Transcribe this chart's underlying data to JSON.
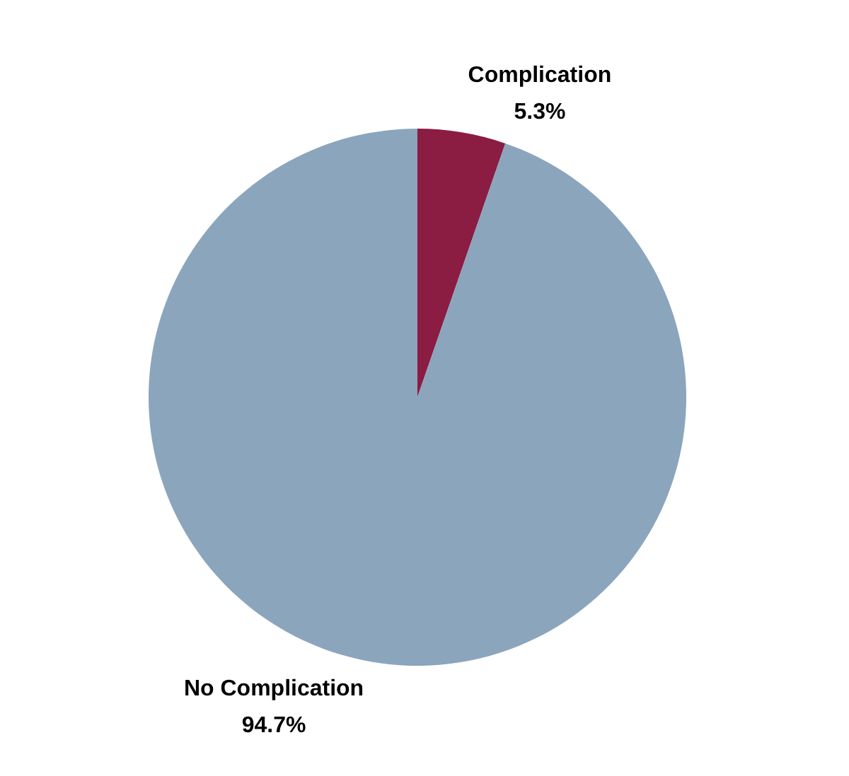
{
  "chart_data": {
    "type": "pie",
    "categories": [
      "Complication",
      "No Complication"
    ],
    "values": [
      5.3,
      94.7
    ],
    "colors": [
      "#8b1c42",
      "#8ba5bd"
    ],
    "value_labels": [
      "5.3%",
      "94.7%"
    ]
  }
}
